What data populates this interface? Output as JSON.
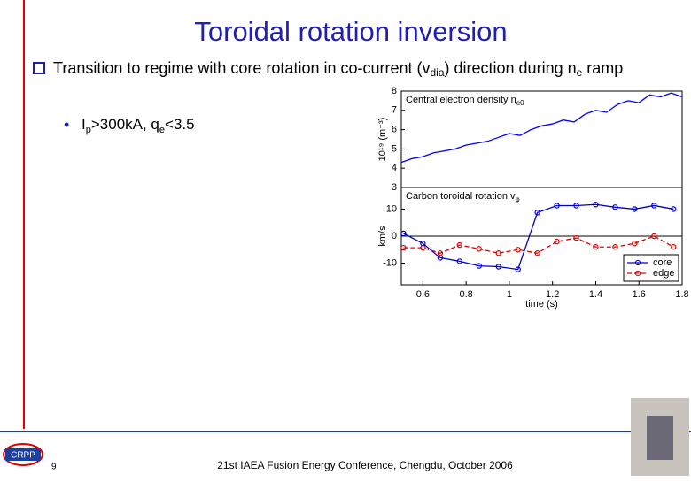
{
  "slide": {
    "title": "Toroidal rotation inversion",
    "bullet": [
      "Transition to regime with core rotation in co-current (v",
      "dia",
      ") direction during n",
      "e",
      " ramp"
    ],
    "subbullet": [
      "I",
      "p",
      ">300kA, q",
      "e",
      "<3.5"
    ],
    "footer": "21st IAEA Fusion Energy Conference, Chengdu, October 2006",
    "page_number": "9",
    "logo": "CRPP"
  },
  "chart_data": [
    {
      "type": "line",
      "title": [
        "Central electron density n",
        "e0"
      ],
      "y_label": "10¹⁹ (m⁻³)",
      "x": [
        0.5,
        0.55,
        0.6,
        0.65,
        0.7,
        0.75,
        0.8,
        0.85,
        0.9,
        0.95,
        1.0,
        1.05,
        1.1,
        1.15,
        1.2,
        1.25,
        1.3,
        1.35,
        1.4,
        1.45,
        1.5,
        1.55,
        1.6,
        1.65,
        1.7,
        1.75,
        1.8
      ],
      "values": [
        4.3,
        4.5,
        4.6,
        4.8,
        4.9,
        5.0,
        5.2,
        5.3,
        5.4,
        5.6,
        5.8,
        5.7,
        6.0,
        6.2,
        6.3,
        6.5,
        6.4,
        6.8,
        7.0,
        6.9,
        7.3,
        7.5,
        7.4,
        7.8,
        7.7,
        7.9,
        7.7
      ],
      "color": "#0000ff",
      "xlim": [
        0.5,
        1.8
      ],
      "ylim": [
        3,
        8
      ],
      "yticks": [
        3,
        4,
        5,
        6,
        7,
        8
      ]
    },
    {
      "type": "line",
      "title": [
        "Carbon toroidal rotation v",
        "φ"
      ],
      "y_label": "km/s",
      "x_label": "time (s)",
      "x": [
        0.51,
        0.6,
        0.68,
        0.77,
        0.86,
        0.95,
        1.04,
        1.13,
        1.22,
        1.31,
        1.4,
        1.49,
        1.58,
        1.67,
        1.76
      ],
      "series": [
        {
          "name": "core",
          "color": "#0000cc",
          "dash": false,
          "values": [
            1,
            -2.7,
            -8,
            -9.3,
            -11,
            -11.3,
            -12.3,
            8.7,
            11.3,
            11.3,
            11.7,
            10.7,
            10,
            11.3,
            10
          ]
        },
        {
          "name": "edge",
          "color": "#dd0000",
          "dash": true,
          "values": [
            -4.3,
            -4.3,
            -6.3,
            -3.3,
            -4.7,
            -6.3,
            -5,
            -6.3,
            -2,
            -0.7,
            -4,
            -4,
            -2.7,
            0,
            -4
          ]
        }
      ],
      "reference_line": 0,
      "xlim": [
        0.5,
        1.8
      ],
      "ylim": [
        -18,
        18
      ],
      "xticks": [
        0.6,
        0.8,
        1,
        1.2,
        1.4,
        1.6,
        1.8
      ],
      "yticks": [
        -10,
        0,
        10
      ],
      "legend": "lower right"
    }
  ]
}
